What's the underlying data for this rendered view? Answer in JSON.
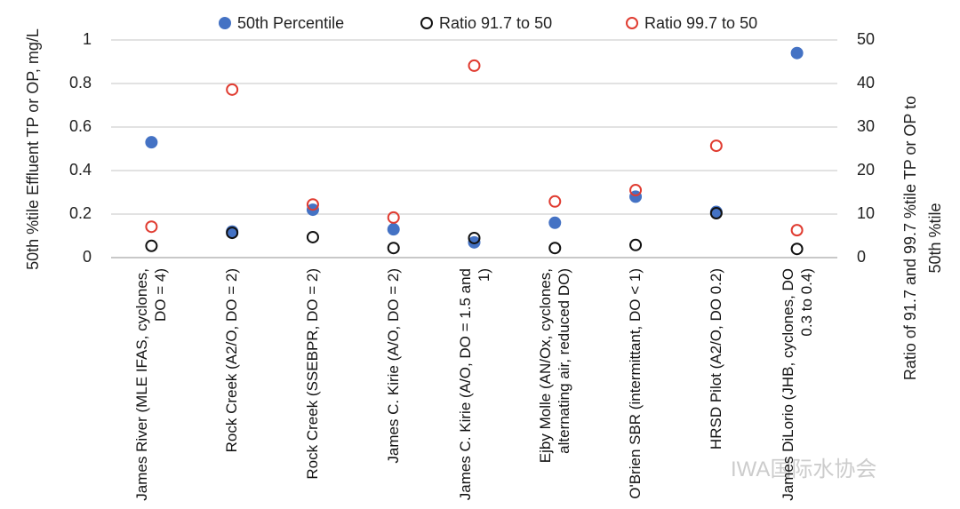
{
  "chart_data": {
    "type": "scatter",
    "y_label": "50th %tile Effluent TP or OP, mg/L",
    "y2_label": [
      "Ratio of 91.7 and 99.7 %tile TP or OP to",
      "50th %tile"
    ],
    "categories": [
      "James River (MLE IFAS, cyclones, DO = 4)",
      "Rock Creek (A2/O, DO = 2)",
      "Rock Creek (SSEBPR, DO = 2)",
      "James C. Kirie (A/O, DO = 2)",
      "James C. Kirie (A/O, DO = 1.5 and 1)",
      "Ejby Molle (AN/Ox, cyclones, alternating air, reduced DO)",
      "O'Brien SBR (intermittant, DO < 1)",
      "HRSD Pilot (A2/O, DO 0.2)",
      "James DiLorio (JHB, cyclones, DO 0.3 to 0.4)"
    ],
    "series": [
      {
        "name": "50th Percentile",
        "color": "#4472c4",
        "filled": true,
        "axis": "y",
        "values": [
          0.53,
          0.12,
          0.22,
          0.13,
          0.07,
          0.16,
          0.28,
          0.21,
          0.94
        ]
      },
      {
        "name": "Ratio 91.7 to 50",
        "color": "#111111",
        "filled": false,
        "axis": "y2",
        "values": [
          2.7,
          5.7,
          4.7,
          2.2,
          4.5,
          2.2,
          2.9,
          10.2,
          2.0
        ]
      },
      {
        "name": "Ratio 99.7 to 50",
        "color": "#e03c31",
        "filled": false,
        "axis": "y2",
        "values": [
          7.1,
          38.6,
          12.2,
          9.2,
          44.1,
          12.9,
          15.5,
          25.7,
          6.3
        ]
      }
    ],
    "ylim": [
      0,
      1
    ],
    "yticks": [
      0,
      0.2,
      0.4,
      0.6,
      0.8,
      1
    ],
    "y2lim": [
      0,
      50
    ],
    "y2ticks": [
      0,
      10,
      20,
      30,
      40,
      50
    ],
    "grid": true
  },
  "watermark": "IWA国际水协会"
}
